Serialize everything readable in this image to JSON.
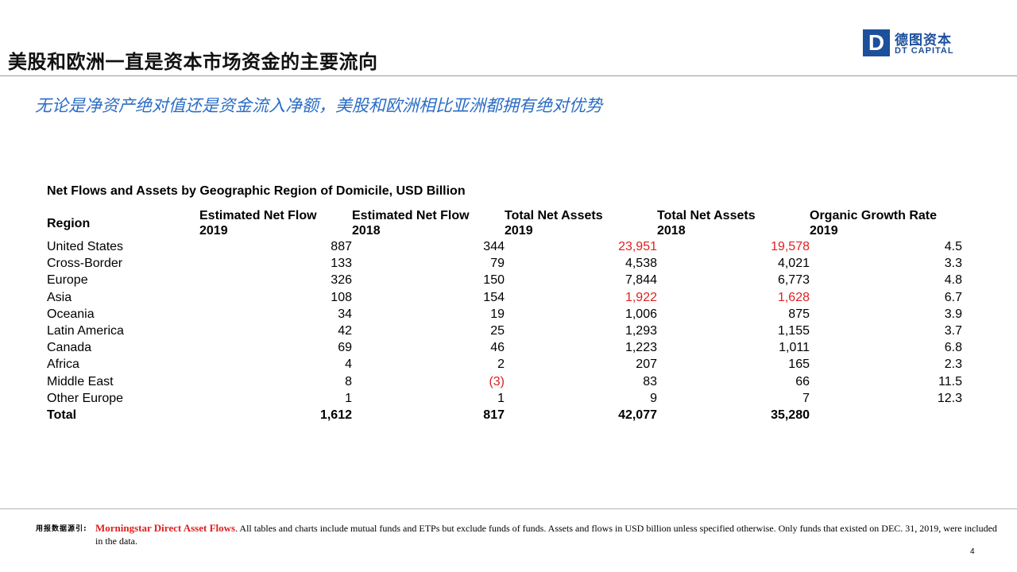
{
  "header": {
    "title": "美股和欧洲一直是资本市场资金的主要流向",
    "logo_mark": "D",
    "logo_cn": "德图资本",
    "logo_en": "DT CAPITAL",
    "brand_color": "#1c4f9c"
  },
  "subtitle": "无论是净资产绝对值还是资金流入净额，美股和欧洲相比亚洲都拥有绝对优势",
  "table": {
    "title": "Net Flows and Assets by Geographic Region of Domicile, USD Billion",
    "columns": [
      "Region",
      "Estimated Net Flow\n2019",
      "Estimated Net Flow\n2018",
      "Total Net Assets\n2019",
      "Total Net Assets\n2018",
      "Organic Growth Rate\n2019"
    ],
    "rows": [
      {
        "region": "United States",
        "flow2019": "887",
        "flow2018": "344",
        "assets2019": "23,951",
        "assets2018": "19,578",
        "growth": "4.5"
      },
      {
        "region": "Cross-Border",
        "flow2019": "133",
        "flow2018": "79",
        "assets2019": "4,538",
        "assets2018": "4,021",
        "growth": "3.3"
      },
      {
        "region": "Europe",
        "flow2019": "326",
        "flow2018": "150",
        "assets2019": "7,844",
        "assets2018": "6,773",
        "growth": "4.8"
      },
      {
        "region": "Asia",
        "flow2019": "108",
        "flow2018": "154",
        "assets2019": "1,922",
        "assets2018": "1,628",
        "growth": "6.7"
      },
      {
        "region": "Oceania",
        "flow2019": "34",
        "flow2018": "19",
        "assets2019": "1,006",
        "assets2018": "875",
        "growth": "3.9"
      },
      {
        "region": "Latin America",
        "flow2019": "42",
        "flow2018": "25",
        "assets2019": "1,293",
        "assets2018": "1,155",
        "growth": "3.7"
      },
      {
        "region": "Canada",
        "flow2019": "69",
        "flow2018": "46",
        "assets2019": "1,223",
        "assets2018": "1,011",
        "growth": "6.8"
      },
      {
        "region": "Africa",
        "flow2019": "4",
        "flow2018": "2",
        "assets2019": "207",
        "assets2018": "165",
        "growth": "2.3"
      },
      {
        "region": "Middle East",
        "flow2019": "8",
        "flow2018": "(3)",
        "assets2019": "83",
        "assets2018": "66",
        "growth": "11.5"
      },
      {
        "region": "Other Europe",
        "flow2019": "1",
        "flow2018": "1",
        "assets2019": "9",
        "assets2018": "7",
        "growth": "12.3"
      }
    ],
    "total": {
      "region": "Total",
      "flow2019": "1,612",
      "flow2018": "817",
      "assets2019": "42,077",
      "assets2018": "35,280",
      "growth": ""
    },
    "highlight_color": "#e02020"
  },
  "footer": {
    "label": "用报数据源引:",
    "source": "Morningstar Direct Asset Flows",
    "note": ". All tables and charts include mutual funds and ETPs but exclude funds of funds. Assets and flows in USD billion unless specified otherwise. Only funds that existed on DEC. 31, 2019, were included in the data.",
    "page_number": "4"
  }
}
